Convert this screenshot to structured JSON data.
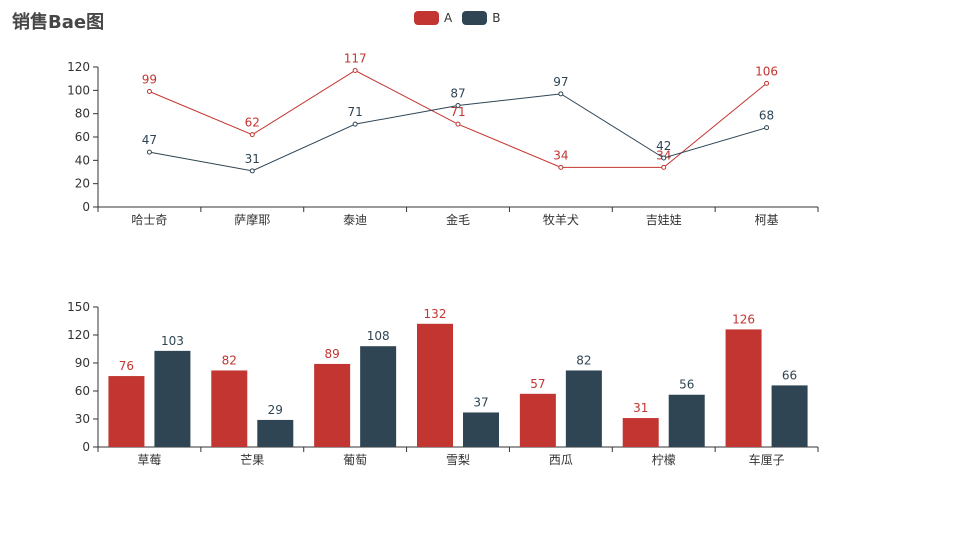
{
  "title": "销售Bae图",
  "colors": {
    "A": "#c23531",
    "B": "#2f4554"
  },
  "legend": [
    {
      "name": "A",
      "color": "#c23531"
    },
    {
      "name": "B",
      "color": "#2f4554"
    }
  ],
  "chart_data": [
    {
      "type": "line",
      "categories": [
        "哈士奇",
        "萨摩耶",
        "泰迪",
        "金毛",
        "牧羊犬",
        "吉娃娃",
        "柯基"
      ],
      "series": [
        {
          "name": "A",
          "values": [
            99,
            62,
            117,
            71,
            34,
            34,
            106
          ]
        },
        {
          "name": "B",
          "values": [
            47,
            31,
            71,
            87,
            97,
            42,
            68
          ]
        }
      ],
      "ylim": [
        0,
        120
      ],
      "yticks": [
        0,
        20,
        40,
        60,
        80,
        100,
        120
      ]
    },
    {
      "type": "bar",
      "categories": [
        "草莓",
        "芒果",
        "葡萄",
        "雪梨",
        "西瓜",
        "柠檬",
        "车厘子"
      ],
      "series": [
        {
          "name": "A",
          "values": [
            76,
            82,
            89,
            132,
            57,
            31,
            126
          ]
        },
        {
          "name": "B",
          "values": [
            103,
            29,
            108,
            37,
            82,
            56,
            66
          ]
        }
      ],
      "ylim": [
        0,
        150
      ],
      "yticks": [
        0,
        30,
        60,
        90,
        120,
        150
      ]
    }
  ]
}
